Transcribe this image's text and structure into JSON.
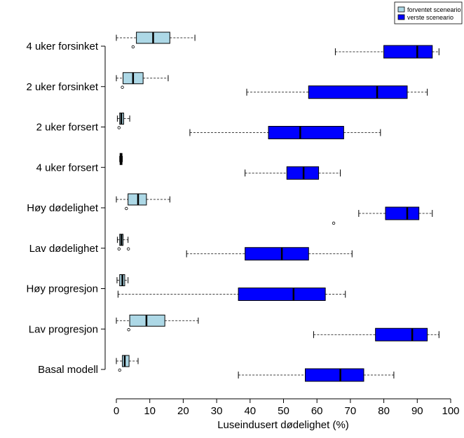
{
  "chart_data": {
    "type": "boxplot",
    "xlabel": "Luseindusert dødelighet (%)",
    "xlim": [
      0,
      100
    ],
    "xticks": [
      0,
      10,
      20,
      30,
      40,
      50,
      60,
      70,
      80,
      90,
      100
    ],
    "legend": {
      "placement": "top-right",
      "entries": [
        {
          "name": "forventet sceneario",
          "color": "#add8e6"
        },
        {
          "name": "verste sceneario",
          "color": "#0000ff"
        }
      ]
    },
    "categories": [
      "4 uker forsinket",
      "2 uker forsinket",
      "2 uker forsert",
      "4 uker forsert",
      "Høy dødelighet",
      "Lav dødelighet",
      "Høy progresjon",
      "Lav progresjon",
      "Basal modell"
    ],
    "series": [
      {
        "name": "forventet sceneario",
        "color": "#add8e6",
        "boxes": [
          {
            "whisker_low": 0,
            "q1": 6,
            "median": 11,
            "q3": 16,
            "whisker_high": 23.5,
            "outliers": [
              5
            ]
          },
          {
            "whisker_low": 0,
            "q1": 2,
            "median": 5,
            "q3": 8,
            "whisker_high": 15.5,
            "outliers": [
              1.8
            ]
          },
          {
            "whisker_low": 0.3,
            "q1": 1,
            "median": 1.5,
            "q3": 2.2,
            "whisker_high": 4,
            "outliers": [
              0.8
            ]
          },
          {
            "whisker_low": 1,
            "q1": 1.1,
            "median": 1.4,
            "q3": 1.7,
            "whisker_high": 1.8,
            "outliers": []
          },
          {
            "whisker_low": 0,
            "q1": 3.5,
            "median": 6.5,
            "q3": 9,
            "whisker_high": 16,
            "outliers": [
              3
            ]
          },
          {
            "whisker_low": 0.3,
            "q1": 1,
            "median": 1.5,
            "q3": 2,
            "whisker_high": 3.5,
            "outliers": [
              0.8,
              3.6
            ]
          },
          {
            "whisker_low": 0.2,
            "q1": 1,
            "median": 1.8,
            "q3": 2.5,
            "whisker_high": 3.5,
            "outliers": []
          },
          {
            "whisker_low": 0,
            "q1": 4,
            "median": 9,
            "q3": 14.5,
            "whisker_high": 24.5,
            "outliers": [
              3.7
            ]
          },
          {
            "whisker_low": 0,
            "q1": 1.8,
            "median": 2.5,
            "q3": 3.8,
            "whisker_high": 6.5,
            "outliers": [
              1
            ]
          }
        ]
      },
      {
        "name": "verste sceneario",
        "color": "#0000ff",
        "boxes": [
          {
            "whisker_low": 65.5,
            "q1": 80,
            "median": 90,
            "q3": 94.5,
            "whisker_high": 96.5,
            "outliers": []
          },
          {
            "whisker_low": 39,
            "q1": 57.5,
            "median": 78,
            "q3": 87,
            "whisker_high": 93,
            "outliers": []
          },
          {
            "whisker_low": 22,
            "q1": 45.5,
            "median": 55,
            "q3": 68,
            "whisker_high": 79,
            "outliers": []
          },
          {
            "whisker_low": 38.5,
            "q1": 51,
            "median": 56,
            "q3": 60.5,
            "whisker_high": 67,
            "outliers": []
          },
          {
            "whisker_low": 72.5,
            "q1": 80.5,
            "median": 87,
            "q3": 90.5,
            "whisker_high": 94.5,
            "outliers": [
              65
            ]
          },
          {
            "whisker_low": 21,
            "q1": 38.5,
            "median": 49.5,
            "q3": 57.5,
            "whisker_high": 70.5,
            "outliers": []
          },
          {
            "whisker_low": 0.5,
            "q1": 36.5,
            "median": 53,
            "q3": 62.5,
            "whisker_high": 68.5,
            "outliers": []
          },
          {
            "whisker_low": 59,
            "q1": 77.5,
            "median": 88.5,
            "q3": 93,
            "whisker_high": 96.5,
            "outliers": []
          },
          {
            "whisker_low": 36.5,
            "q1": 56.5,
            "median": 67,
            "q3": 74,
            "whisker_high": 83,
            "outliers": []
          }
        ]
      }
    ]
  }
}
